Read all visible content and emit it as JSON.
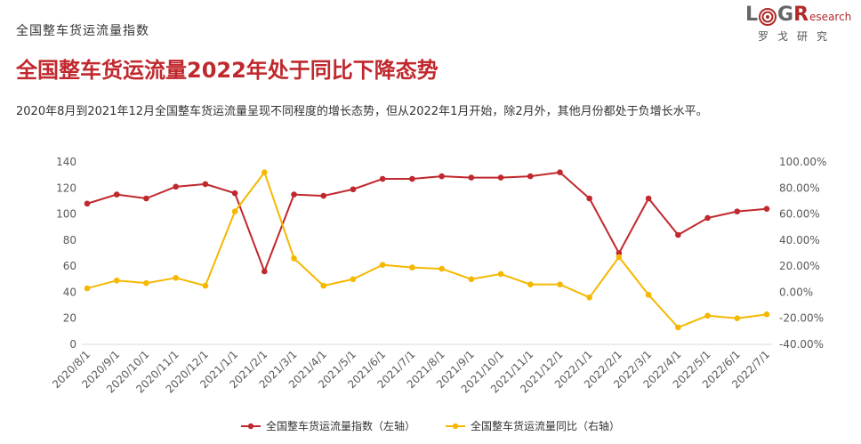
{
  "header": {
    "section_label": "全国整车货运流量指数",
    "headline": "全国整车货运流量2022年处于同比下降态势",
    "description": "2020年8月到2021年12月全国整车货运流量呈现不同程度的增长态势，但从2022年1月开始，除2月外，其他月份都处于负增长水平。"
  },
  "logo": {
    "letter_l": "L",
    "letter_g": "G",
    "letter_r": "R",
    "research": "esearch",
    "subtitle": "罗戈研究",
    "icon": "target-rings-icon"
  },
  "colors": {
    "index_line": "#c0282d",
    "yoy_line": "#f5b800",
    "headline": "#c0282d",
    "axis_text": "#595959",
    "grid": "#d9d9d9"
  },
  "chart_data": {
    "type": "line",
    "categories": [
      "2020/8/1",
      "2020/9/1",
      "2020/10/1",
      "2020/11/1",
      "2020/12/1",
      "2021/1/1",
      "2021/2/1",
      "2021/3/1",
      "2021/4/1",
      "2021/5/1",
      "2021/6/1",
      "2021/7/1",
      "2021/8/1",
      "2021/9/1",
      "2021/10/1",
      "2021/11/1",
      "2021/12/1",
      "2022/1/1",
      "2022/2/1",
      "2022/3/1",
      "2022/4/1",
      "2022/5/1",
      "2022/6/1",
      "2022/7/1"
    ],
    "series": [
      {
        "name": "全国整车货运流量指数（左轴）",
        "axis": "left",
        "values": [
          108,
          115,
          112,
          121,
          123,
          116,
          56,
          115,
          114,
          119,
          127,
          127,
          129,
          128,
          128,
          129,
          132,
          112,
          70,
          112,
          84,
          97,
          102,
          104
        ]
      },
      {
        "name": "全国整车货运流量同比（右轴）",
        "axis": "right",
        "values": [
          3,
          9,
          7,
          11,
          5,
          62,
          92,
          26,
          5,
          10,
          21,
          19,
          18,
          10,
          14,
          6,
          6,
          -4,
          27,
          -2,
          -27,
          -18,
          -20,
          -17
        ]
      }
    ],
    "y_left": {
      "min": 0,
      "max": 140,
      "ticks": [
        "0",
        "20",
        "40",
        "60",
        "80",
        "100",
        "120",
        "140"
      ]
    },
    "y_right": {
      "min": -40,
      "max": 100,
      "ticks": [
        "-40.00%",
        "-20.00%",
        "0.00%",
        "20.00%",
        "40.00%",
        "60.00%",
        "80.00%",
        "100.00%"
      ]
    },
    "grid": false,
    "legend_position": "bottom"
  }
}
